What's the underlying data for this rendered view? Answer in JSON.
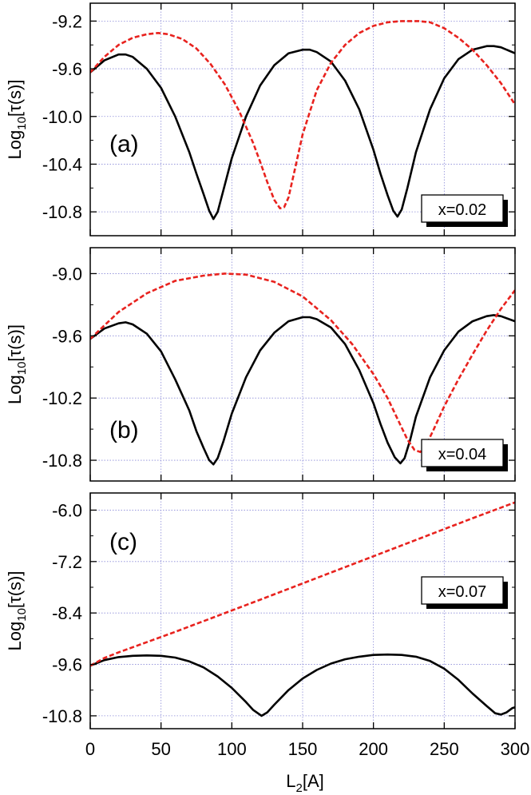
{
  "xlabel": "L2[A]",
  "x_ticks": [
    "0",
    "50",
    "100",
    "150",
    "200",
    "250",
    "300"
  ],
  "chart_data": [
    {
      "type": "line",
      "panel_label": "(a)",
      "box_label": "x=0.02",
      "ylabel": "Log10[τ(s)]",
      "xlim": [
        0,
        300
      ],
      "ylim": [
        -11.0,
        -9.05
      ],
      "y_ticks": [
        -9.2,
        -9.6,
        -10.0,
        -10.4,
        -10.8
      ],
      "y_tick_labels": [
        "-9.2",
        "-9.6",
        "-10.0",
        "-10.4",
        "-10.8"
      ],
      "grid": true,
      "series": [
        {
          "color": "#000000",
          "style": "solid",
          "x": [
            0,
            10,
            20,
            25,
            30,
            40,
            50,
            60,
            70,
            75,
            80,
            84,
            87,
            90,
            94,
            100,
            110,
            120,
            130,
            140,
            150,
            155,
            160,
            170,
            180,
            190,
            200,
            205,
            210,
            214,
            217,
            220,
            224,
            230,
            240,
            250,
            260,
            270,
            280,
            285,
            290,
            300
          ],
          "y": [
            -9.63,
            -9.53,
            -9.48,
            -9.48,
            -9.5,
            -9.6,
            -9.76,
            -10.0,
            -10.3,
            -10.48,
            -10.65,
            -10.79,
            -10.86,
            -10.8,
            -10.62,
            -10.35,
            -10.0,
            -9.74,
            -9.57,
            -9.47,
            -9.44,
            -9.44,
            -9.46,
            -9.54,
            -9.7,
            -9.94,
            -10.28,
            -10.48,
            -10.66,
            -10.79,
            -10.84,
            -10.78,
            -10.6,
            -10.3,
            -9.94,
            -9.68,
            -9.52,
            -9.44,
            -9.41,
            -9.41,
            -9.42,
            -9.47
          ]
        },
        {
          "color": "#e8221e",
          "style": "dashed",
          "x": [
            0,
            10,
            20,
            30,
            40,
            48,
            55,
            65,
            75,
            85,
            95,
            105,
            115,
            120,
            125,
            130,
            134,
            137,
            140,
            145,
            150,
            160,
            170,
            180,
            190,
            200,
            210,
            220,
            232,
            240,
            250,
            260,
            270,
            280,
            290,
            300
          ],
          "y": [
            -9.63,
            -9.5,
            -9.4,
            -9.34,
            -9.31,
            -9.3,
            -9.31,
            -9.35,
            -9.43,
            -9.56,
            -9.73,
            -9.95,
            -10.22,
            -10.38,
            -10.55,
            -10.7,
            -10.77,
            -10.76,
            -10.68,
            -10.42,
            -10.15,
            -9.78,
            -9.55,
            -9.4,
            -9.3,
            -9.24,
            -9.21,
            -9.2,
            -9.2,
            -9.21,
            -9.26,
            -9.34,
            -9.44,
            -9.57,
            -9.72,
            -9.9
          ]
        }
      ]
    },
    {
      "type": "line",
      "panel_label": "(b)",
      "box_label": "x=0.04",
      "ylabel": "Log10[τ(s)]",
      "xlim": [
        0,
        300
      ],
      "ylim": [
        -11.0,
        -8.75
      ],
      "y_ticks": [
        -9.0,
        -9.6,
        -10.2,
        -10.8
      ],
      "y_tick_labels": [
        "-9.0",
        "-9.6",
        "-10.2",
        "-10.8"
      ],
      "grid": true,
      "series": [
        {
          "color": "#000000",
          "style": "solid",
          "x": [
            0,
            10,
            20,
            25,
            30,
            40,
            50,
            60,
            70,
            75,
            80,
            84,
            87,
            90,
            94,
            100,
            110,
            120,
            130,
            140,
            150,
            155,
            160,
            170,
            180,
            190,
            200,
            205,
            210,
            215,
            219,
            222,
            226,
            230,
            240,
            250,
            260,
            270,
            280,
            285,
            290,
            300
          ],
          "y": [
            -9.63,
            -9.53,
            -9.48,
            -9.47,
            -9.49,
            -9.58,
            -9.75,
            -10.02,
            -10.32,
            -10.52,
            -10.68,
            -10.8,
            -10.84,
            -10.78,
            -10.62,
            -10.35,
            -10.0,
            -9.74,
            -9.57,
            -9.46,
            -9.42,
            -9.42,
            -9.44,
            -9.52,
            -9.68,
            -9.93,
            -10.25,
            -10.45,
            -10.63,
            -10.77,
            -10.83,
            -10.78,
            -10.6,
            -10.38,
            -10.0,
            -9.74,
            -9.56,
            -9.46,
            -9.41,
            -9.4,
            -9.41,
            -9.46
          ]
        },
        {
          "color": "#e8221e",
          "style": "dashed",
          "x": [
            0,
            10,
            20,
            40,
            60,
            80,
            95,
            110,
            130,
            150,
            170,
            185,
            200,
            210,
            218,
            224,
            229,
            233,
            237,
            242,
            250,
            260,
            270,
            280,
            290,
            300
          ],
          "y": [
            -9.63,
            -9.5,
            -9.37,
            -9.19,
            -9.07,
            -9.02,
            -9.0,
            -9.01,
            -9.08,
            -9.22,
            -9.45,
            -9.68,
            -9.97,
            -10.2,
            -10.43,
            -10.6,
            -10.7,
            -10.72,
            -10.66,
            -10.52,
            -10.28,
            -10.02,
            -9.78,
            -9.55,
            -9.34,
            -9.16
          ]
        }
      ]
    },
    {
      "type": "line",
      "panel_label": "(c)",
      "box_label": "x=0.07",
      "ylabel": "Log10[τ(s)]",
      "xlim": [
        0,
        300
      ],
      "ylim": [
        -11.1,
        -5.6
      ],
      "y_ticks": [
        -6.0,
        -7.2,
        -8.4,
        -9.6,
        -10.8
      ],
      "y_tick_labels": [
        "-6.0",
        "-7.2",
        "-8.4",
        "-9.6",
        "-10.8"
      ],
      "grid": true,
      "series": [
        {
          "color": "#000000",
          "style": "solid",
          "x": [
            0,
            10,
            20,
            30,
            40,
            50,
            60,
            70,
            80,
            90,
            100,
            110,
            115,
            121,
            125,
            130,
            140,
            150,
            160,
            170,
            180,
            190,
            200,
            210,
            220,
            230,
            240,
            250,
            260,
            270,
            280,
            286,
            290,
            294,
            298,
            300
          ],
          "y": [
            -9.63,
            -9.5,
            -9.43,
            -9.4,
            -9.39,
            -9.4,
            -9.44,
            -9.53,
            -9.67,
            -9.88,
            -10.15,
            -10.48,
            -10.66,
            -10.8,
            -10.72,
            -10.54,
            -10.2,
            -9.93,
            -9.73,
            -9.58,
            -9.48,
            -9.42,
            -9.38,
            -9.37,
            -9.38,
            -9.42,
            -9.52,
            -9.7,
            -9.96,
            -10.28,
            -10.57,
            -10.74,
            -10.77,
            -10.72,
            -10.62,
            -10.6
          ]
        },
        {
          "color": "#e8221e",
          "style": "dashed",
          "x": [
            0,
            10,
            20,
            40,
            60,
            80,
            100,
            120,
            150,
            180,
            210,
            240,
            270,
            300
          ],
          "y": [
            -9.63,
            -9.45,
            -9.32,
            -9.08,
            -8.84,
            -8.59,
            -8.34,
            -8.09,
            -7.71,
            -7.33,
            -6.95,
            -6.57,
            -6.19,
            -5.82
          ]
        }
      ]
    }
  ]
}
